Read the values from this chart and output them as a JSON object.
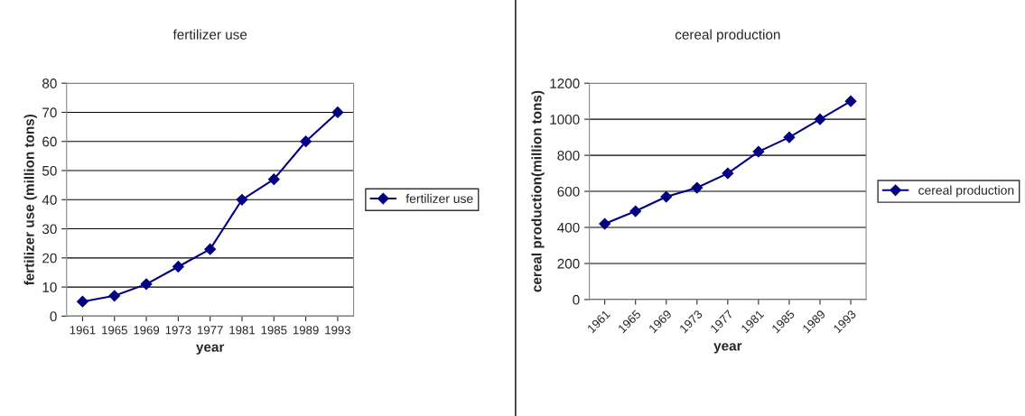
{
  "chart_data": [
    {
      "type": "line",
      "title": "fertilizer use",
      "xlabel": "year",
      "ylabel": "fertilizer use (million tons)",
      "categories": [
        "1961",
        "1965",
        "1969",
        "1973",
        "1977",
        "1981",
        "1985",
        "1989",
        "1993"
      ],
      "series": [
        {
          "name": "fertilizer use",
          "color": "#000080",
          "values": [
            5,
            7,
            11,
            17,
            23,
            40,
            47,
            60,
            70
          ]
        }
      ],
      "ylim": [
        0,
        80
      ],
      "yticks": [
        0,
        10,
        20,
        30,
        40,
        50,
        60,
        70,
        80
      ],
      "grid": "y",
      "legend": "right",
      "marker": "diamond",
      "line_style": "solid"
    },
    {
      "type": "line",
      "title": "cereal production",
      "xlabel": "year",
      "ylabel": "cereal production(million tons)",
      "categories": [
        "1961",
        "1965",
        "1969",
        "1973",
        "1977",
        "1981",
        "1985",
        "1989",
        "1993"
      ],
      "series": [
        {
          "name": "cereal production",
          "color": "#000080",
          "values": [
            420,
            490,
            570,
            620,
            700,
            820,
            900,
            1000,
            1100
          ]
        }
      ],
      "ylim": [
        0,
        1200
      ],
      "yticks": [
        0,
        200,
        400,
        600,
        800,
        1000,
        1200
      ],
      "grid": "y",
      "legend": "right",
      "marker": "diamond",
      "line_style": "solid"
    }
  ]
}
